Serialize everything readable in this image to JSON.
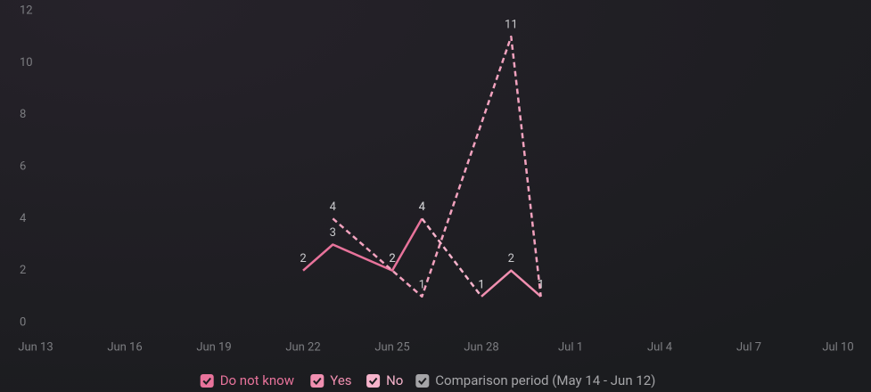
{
  "chart_data": {
    "type": "line",
    "xticks": [
      "Jun 13",
      "Jun 16",
      "Jun 19",
      "Jun 22",
      "Jun 25",
      "Jun 28",
      "Jul 1",
      "Jul 4",
      "Jul 7",
      "Jul 10"
    ],
    "ylim": [
      0,
      12
    ],
    "yticks": [
      0,
      2,
      4,
      6,
      8,
      10,
      12
    ],
    "series": [
      {
        "name": "Do not know",
        "color": "#e8739b",
        "dashed": false,
        "x": [
          "Jun 22",
          "Jun 23",
          "Jun 25",
          "Jun 26"
        ],
        "values": [
          2,
          3,
          2,
          4
        ]
      },
      {
        "name": "Yes",
        "color": "#f08fb0",
        "dashed": false,
        "x": [
          "Jun 28",
          "Jun 29",
          "Jun 30"
        ],
        "values": [
          1,
          2,
          1
        ]
      },
      {
        "name": "No",
        "color": "#f6b3cb",
        "dashed": true,
        "x": [
          "Jun 26",
          "Jun 28"
        ],
        "values": [
          4,
          1
        ]
      },
      {
        "name": "Comparison period (May 14 - Jun 12)",
        "color": "#a5a5a8",
        "line_color": "#f2a2be",
        "dashed": true,
        "x": [
          "Jun 23",
          "Jun 25",
          "Jun 26",
          "Jun 29",
          "Jun 30"
        ],
        "values": [
          4,
          2,
          1,
          11,
          1
        ]
      }
    ]
  }
}
